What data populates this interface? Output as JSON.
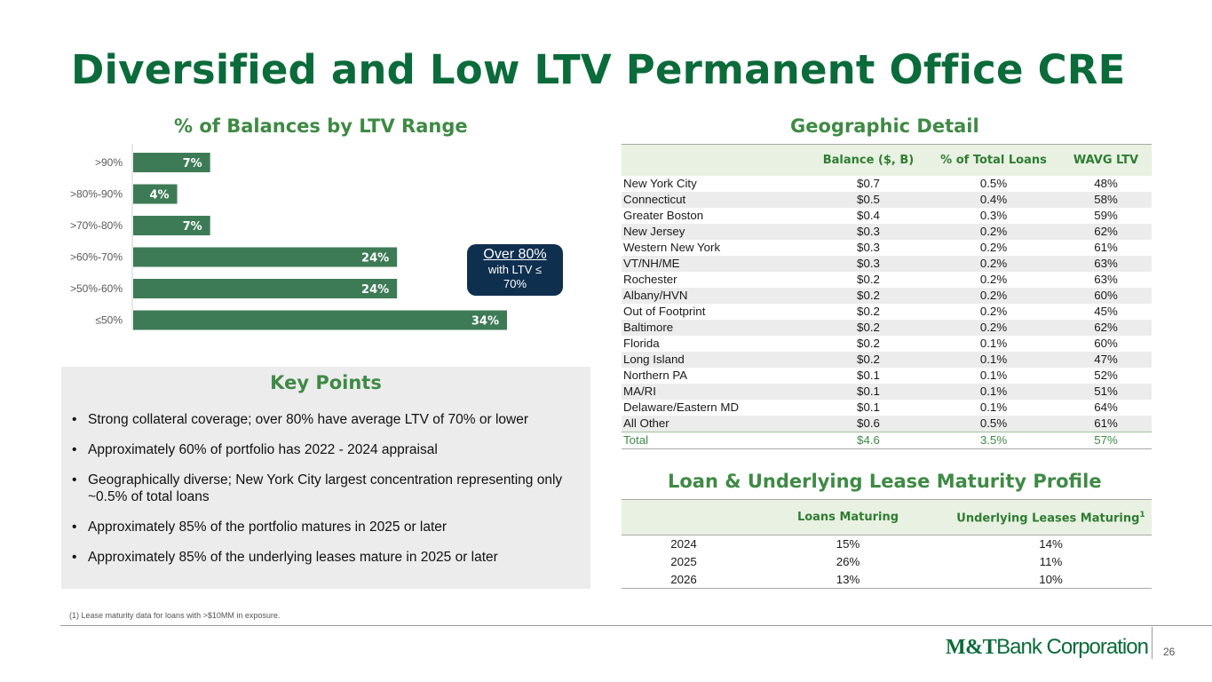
{
  "title": "Diversified and Low LTV Permanent Office CRE",
  "bar_section_title": "% of Balances by LTV Range",
  "geo_section_title": "Geographic Detail",
  "maturity_section_title": "Loan & Underlying Lease Maturity Profile",
  "callout": {
    "line1": "Over 80%",
    "line2": "with LTV ≤",
    "line3": "70%"
  },
  "chart_data": {
    "type": "bar",
    "orientation": "horizontal",
    "title": "% of Balances by LTV Range",
    "categories": [
      ">90%",
      ">80%-90%",
      ">70%-80%",
      ">60%-70%",
      ">50%-60%",
      "≤50%"
    ],
    "values": [
      7,
      4,
      7,
      24,
      24,
      34
    ],
    "value_labels": [
      "7%",
      "4%",
      "7%",
      "24%",
      "24%",
      "34%"
    ],
    "unit": "%",
    "xlim": [
      0,
      34
    ],
    "bar_color": "#3d7b56",
    "grid": false
  },
  "key_points": {
    "heading": "Key Points",
    "items": [
      "Strong collateral coverage; over 80% have average LTV of 70% or lower",
      "Approximately 60% of portfolio has 2022 - 2024 appraisal",
      "Geographically diverse; New York City largest concentration representing only ~0.5% of total loans",
      "Approximately 85% of the portfolio matures in 2025 or later",
      "Approximately 85% of the underlying leases mature in 2025 or later"
    ]
  },
  "geo_table": {
    "headers": [
      "",
      "Balance ($, B)",
      "% of Total Loans",
      "WAVG LTV"
    ],
    "rows": [
      [
        "New York City",
        "$0.7",
        "0.5%",
        "48%"
      ],
      [
        "Connecticut",
        "$0.5",
        "0.4%",
        "58%"
      ],
      [
        "Greater Boston",
        "$0.4",
        "0.3%",
        "59%"
      ],
      [
        "New Jersey",
        "$0.3",
        "0.2%",
        "62%"
      ],
      [
        "Western New York",
        "$0.3",
        "0.2%",
        "61%"
      ],
      [
        "VT/NH/ME",
        "$0.3",
        "0.2%",
        "63%"
      ],
      [
        "Rochester",
        "$0.2",
        "0.2%",
        "63%"
      ],
      [
        "Albany/HVN",
        "$0.2",
        "0.2%",
        "60%"
      ],
      [
        "Out of Footprint",
        "$0.2",
        "0.2%",
        "45%"
      ],
      [
        "Baltimore",
        "$0.2",
        "0.2%",
        "62%"
      ],
      [
        "Florida",
        "$0.2",
        "0.1%",
        "60%"
      ],
      [
        "Long Island",
        "$0.2",
        "0.1%",
        "47%"
      ],
      [
        "Northern PA",
        "$0.1",
        "0.1%",
        "52%"
      ],
      [
        "MA/RI",
        "$0.1",
        "0.1%",
        "51%"
      ],
      [
        "Delaware/Eastern MD",
        "$0.1",
        "0.1%",
        "64%"
      ],
      [
        "All Other",
        "$0.6",
        "0.5%",
        "61%"
      ]
    ],
    "total": [
      "Total",
      "$4.6",
      "3.5%",
      "57%"
    ]
  },
  "maturity_table": {
    "headers": [
      "",
      "Loans Maturing",
      "Underlying Leases Maturing"
    ],
    "header_sup": "1",
    "rows": [
      [
        "2024",
        "15%",
        "14%"
      ],
      [
        "2025",
        "26%",
        "11%"
      ],
      [
        "2026",
        "13%",
        "10%"
      ]
    ]
  },
  "footnote": "(1) Lease maturity data for loans with >$10MM in exposure.",
  "logo": {
    "part1": "M&T",
    "part2": "Bank Corporation"
  },
  "page_number": "26",
  "colors": {
    "brand_green": "#0b6b3a",
    "section_green": "#3f8a45",
    "bar": "#3d7b56",
    "callout_bg": "#0f2f4f"
  }
}
